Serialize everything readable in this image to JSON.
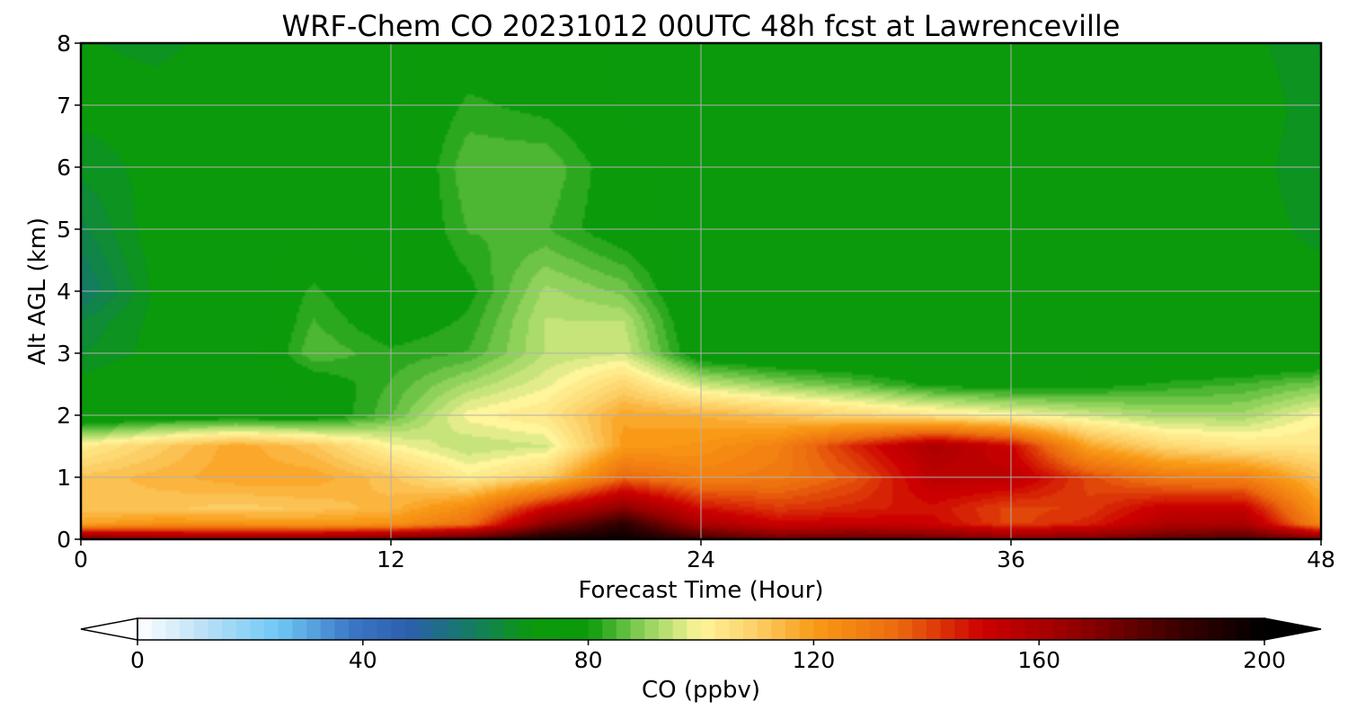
{
  "chart_data": {
    "type": "heatmap",
    "title": "WRF-Chem CO  20231012 00UTC 48h fcst at Lawrenceville",
    "xlabel": "Forecast Time (Hour)",
    "ylabel": "Alt AGL (km)",
    "xlim": [
      0,
      48
    ],
    "ylim": [
      0,
      8
    ],
    "xticks": [
      0,
      12,
      24,
      36,
      48
    ],
    "yticks": [
      0,
      1,
      2,
      3,
      4,
      5,
      6,
      7,
      8
    ],
    "grid": true,
    "x": [
      0,
      3,
      6,
      9,
      12,
      15,
      18,
      21,
      24,
      27,
      30,
      33,
      36,
      39,
      42,
      45,
      48
    ],
    "y": [
      0,
      0.25,
      0.5,
      1,
      1.5,
      2,
      2.5,
      3,
      3.5,
      4,
      5,
      6,
      7,
      8
    ],
    "z": [
      [
        175,
        170,
        168,
        170,
        175,
        182,
        195,
        198,
        185,
        175,
        178,
        175,
        170,
        172,
        178,
        182,
        172
      ],
      [
        118,
        122,
        122,
        120,
        122,
        132,
        168,
        188,
        160,
        150,
        152,
        150,
        140,
        145,
        158,
        160,
        125
      ],
      [
        112,
        112,
        110,
        112,
        115,
        125,
        150,
        168,
        148,
        142,
        145,
        148,
        140,
        142,
        152,
        152,
        120
      ],
      [
        112,
        115,
        118,
        118,
        112,
        102,
        110,
        135,
        128,
        130,
        138,
        155,
        155,
        140,
        130,
        128,
        112
      ],
      [
        102,
        110,
        118,
        112,
        100,
        94,
        96,
        120,
        122,
        128,
        145,
        160,
        150,
        118,
        108,
        104,
        104
      ],
      [
        72,
        76,
        76,
        76,
        86,
        100,
        104,
        118,
        116,
        112,
        108,
        104,
        100,
        96,
        92,
        92,
        100
      ],
      [
        70,
        73,
        73,
        78,
        84,
        92,
        98,
        108,
        95,
        90,
        86,
        80,
        78,
        79,
        82,
        84,
        88
      ],
      [
        66,
        70,
        72,
        86,
        82,
        84,
        94,
        96,
        76,
        73,
        72,
        71,
        70,
        71,
        72,
        72,
        73
      ],
      [
        64,
        70,
        72,
        84,
        78,
        82,
        94,
        94,
        74,
        72,
        71,
        70,
        71,
        72,
        72,
        72,
        72
      ],
      [
        58,
        70,
        74,
        82,
        76,
        80,
        92,
        88,
        73,
        71,
        70,
        70,
        71,
        71,
        71,
        70,
        70
      ],
      [
        63,
        71,
        72,
        76,
        75,
        84,
        84,
        78,
        73,
        72,
        72,
        73,
        72,
        72,
        71,
        70,
        68
      ],
      [
        67,
        70,
        71,
        73,
        74,
        86,
        86,
        78,
        74,
        74,
        73,
        73,
        71,
        70,
        70,
        70,
        67
      ],
      [
        70,
        70,
        71,
        73,
        75,
        82,
        80,
        76,
        73,
        72,
        72,
        73,
        72,
        71,
        71,
        71,
        67
      ],
      [
        69,
        68,
        70,
        73,
        75,
        78,
        78,
        76,
        72,
        72,
        72,
        74,
        73,
        72,
        71,
        70,
        66
      ]
    ],
    "colorbar": {
      "label": "CO  (ppbv)",
      "min": 0,
      "max": 200,
      "ticks": [
        0,
        40,
        80,
        120,
        160,
        200
      ],
      "extend": "both",
      "stops": [
        {
          "v": 0,
          "c": "#ffffff"
        },
        {
          "v": 12,
          "c": "#b9e0f7"
        },
        {
          "v": 25,
          "c": "#6fc8f5"
        },
        {
          "v": 38,
          "c": "#3b76c6"
        },
        {
          "v": 48,
          "c": "#2c5fad"
        },
        {
          "v": 60,
          "c": "#137d5e"
        },
        {
          "v": 70,
          "c": "#0b9a0b"
        },
        {
          "v": 80,
          "c": "#0a9a0a"
        },
        {
          "v": 90,
          "c": "#8fd25a"
        },
        {
          "v": 100,
          "c": "#fff59a"
        },
        {
          "v": 110,
          "c": "#fcce66"
        },
        {
          "v": 120,
          "c": "#f99a16"
        },
        {
          "v": 135,
          "c": "#ec6a0e"
        },
        {
          "v": 150,
          "c": "#cc0000"
        },
        {
          "v": 165,
          "c": "#9a0000"
        },
        {
          "v": 185,
          "c": "#3a0000"
        },
        {
          "v": 200,
          "c": "#000000"
        }
      ]
    }
  }
}
